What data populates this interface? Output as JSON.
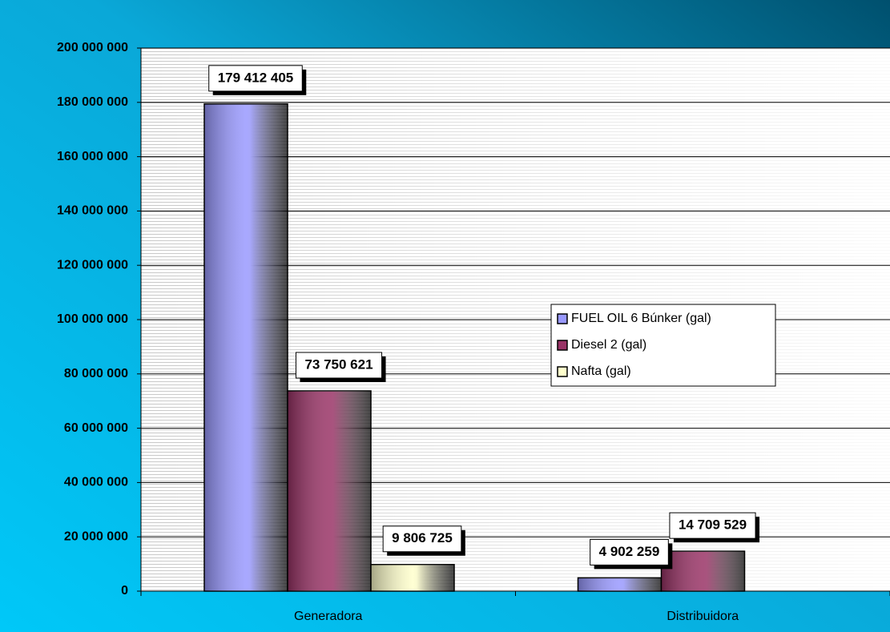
{
  "chart_data": {
    "type": "bar",
    "categories": [
      "Generadora",
      "Distribuidora"
    ],
    "series": [
      {
        "name": "FUEL OIL 6 Búnker (gal)",
        "color": "#9999ff",
        "values": [
          179412405,
          4902259
        ],
        "value_labels": [
          "179 412 405",
          "4 902 259"
        ]
      },
      {
        "name": "Diesel 2 (gal)",
        "color": "#993366",
        "values": [
          73750621,
          14709529
        ],
        "value_labels": [
          "73 750 621",
          "14 709 529"
        ]
      },
      {
        "name": "Nafta (gal)",
        "color": "#ffffcc",
        "values": [
          9806725,
          null
        ],
        "value_labels": [
          "9 806 725",
          null
        ]
      }
    ],
    "ylim": [
      0,
      200000000
    ],
    "yticks": [
      0,
      {
        "value": 20000000,
        "label": "20 000 000"
      },
      {
        "value": 40000000,
        "label": "40 000 000"
      },
      {
        "value": 60000000,
        "label": "60 000 000"
      },
      {
        "value": 80000000,
        "label": "80 000 000"
      },
      {
        "value": 100000000,
        "label": "100 000 000"
      },
      {
        "value": 120000000,
        "label": "120 000 000"
      },
      {
        "value": 140000000,
        "label": "140 000 000"
      },
      {
        "value": 160000000,
        "label": "160 000 000"
      },
      {
        "value": 180000000,
        "label": "180 000 000"
      },
      {
        "value": 200000000,
        "label": "200 000 000"
      }
    ],
    "grid": true,
    "legend": "right"
  }
}
